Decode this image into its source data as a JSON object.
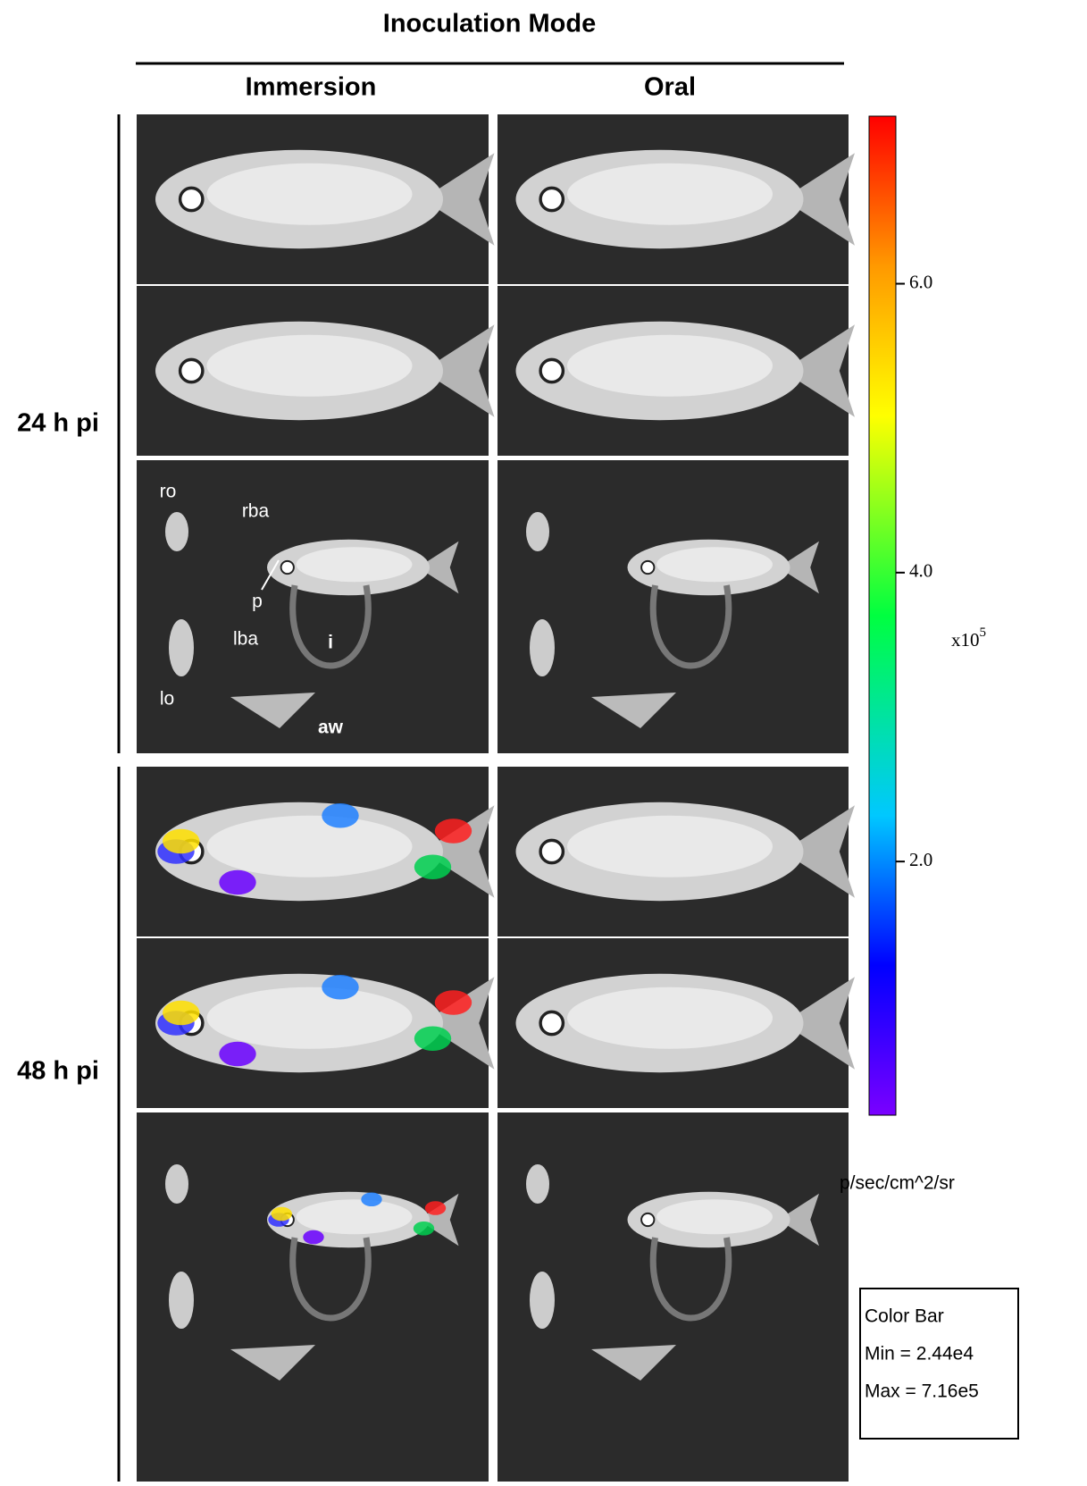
{
  "header": {
    "title": "Inoculation Mode",
    "columns": [
      "Immersion",
      "Oral"
    ]
  },
  "rows": [
    "24 h pi",
    "48 h pi"
  ],
  "annotations": [
    "ro",
    "rba",
    "p",
    "lba",
    "i",
    "lo",
    "aw"
  ],
  "colorbar": {
    "lim": [
      0.244,
      7.16
    ],
    "ticks": [
      {
        "value": 6,
        "label": "6.0"
      },
      {
        "value": 4,
        "label": "4.0"
      },
      {
        "value": 2,
        "label": "2.0"
      }
    ],
    "scale_base": "x10",
    "scale_exponent": "5",
    "unit": "p/sec/cm^2/sr",
    "legend": [
      "Color Bar",
      "Min = 2.44e4",
      "Max = 7.16e5"
    ]
  }
}
